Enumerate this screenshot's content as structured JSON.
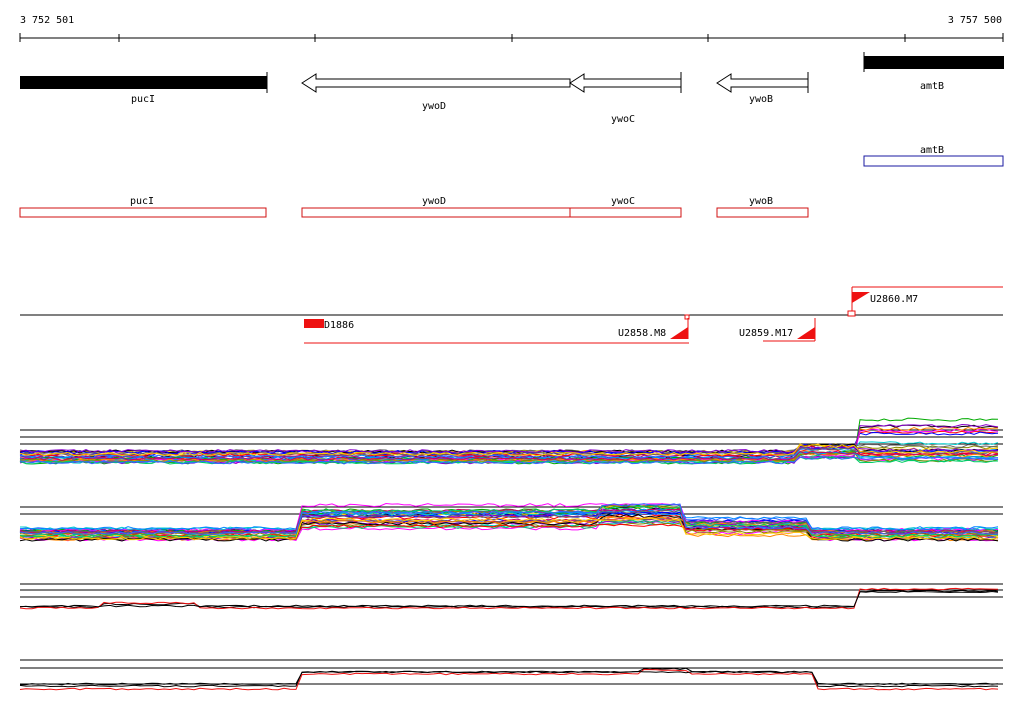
{
  "ruler": {
    "start_label": "3 752 501",
    "end_label": "3 757 500"
  },
  "genes_top": [
    {
      "name": "pucI",
      "style": "solid"
    },
    {
      "name": "ywoD",
      "style": "arrow-left"
    },
    {
      "name": "ywoC",
      "style": "arrow-left"
    },
    {
      "name": "ywoB",
      "style": "arrow-left"
    },
    {
      "name": "amtB",
      "style": "solid"
    }
  ],
  "annotation_track_blue": [
    {
      "name": "amtB",
      "color": "#1a1aa0"
    }
  ],
  "annotation_track_red": [
    {
      "name": "pucI",
      "color": "#d01010"
    },
    {
      "name": "ywoD",
      "color": "#d01010"
    },
    {
      "name": "ywoC",
      "color": "#d01010"
    },
    {
      "name": "ywoB",
      "color": "#d01010"
    }
  ],
  "transcription_units": [
    {
      "label": "D1886"
    },
    {
      "label": "U2858.M8"
    },
    {
      "label": "U2859.M17"
    },
    {
      "label": "U2860.M7"
    }
  ],
  "expression_panels": [
    {
      "id": "panel-1",
      "kind": "multicolor"
    },
    {
      "id": "panel-2",
      "kind": "multicolor"
    },
    {
      "id": "panel-3",
      "kind": "black-red"
    },
    {
      "id": "panel-4",
      "kind": "black-red"
    }
  ],
  "colors": {
    "gene_fill": "#000000",
    "annotation_red": "#d01010",
    "annotation_blue": "#1a1aa0",
    "tu_red": "#ee1111"
  }
}
